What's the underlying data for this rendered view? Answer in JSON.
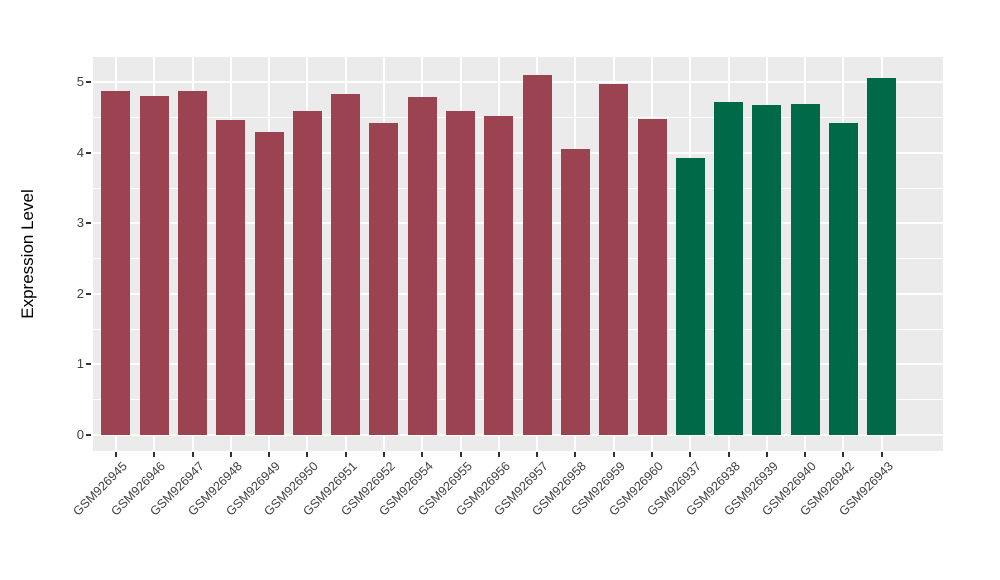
{
  "colors": {
    "maroon_bar": "#9b4350",
    "green_bar": "#006948",
    "panel_background": "#ebebeb",
    "grid": "#ffffff",
    "axis_text": "#404040",
    "axis_title": "#000000",
    "figure_background": "#ffffff"
  },
  "chart_data": {
    "type": "bar",
    "title": "",
    "xlabel": "",
    "ylabel": "Expression Level",
    "ylim": [
      -0.23,
      5.36
    ],
    "yticks": [
      0,
      1,
      2,
      3,
      4,
      5
    ],
    "ytick_labels": [
      "0",
      "1",
      "2",
      "3",
      "4",
      "5"
    ],
    "grid": "on",
    "legend": "none",
    "x_tick_rotation": 45,
    "categories": [
      "GSM926945",
      "GSM926946",
      "GSM926947",
      "GSM926948",
      "GSM926949",
      "GSM926950",
      "GSM926951",
      "GSM926952",
      "GSM926954",
      "GSM926955",
      "GSM926956",
      "GSM926957",
      "GSM926958",
      "GSM926959",
      "GSM926960",
      "GSM926937",
      "GSM926938",
      "GSM926939",
      "GSM926940",
      "GSM926942",
      "GSM926943"
    ],
    "values": [
      4.88,
      4.81,
      4.88,
      4.47,
      4.3,
      4.59,
      4.84,
      4.42,
      4.79,
      4.59,
      4.53,
      5.11,
      4.06,
      4.97,
      4.48,
      3.92,
      4.72,
      4.68,
      4.7,
      4.43,
      5.06
    ],
    "bar_colors": [
      "#9b4350",
      "#9b4350",
      "#9b4350",
      "#9b4350",
      "#9b4350",
      "#9b4350",
      "#9b4350",
      "#9b4350",
      "#9b4350",
      "#9b4350",
      "#9b4350",
      "#9b4350",
      "#9b4350",
      "#9b4350",
      "#9b4350",
      "#006948",
      "#006948",
      "#006948",
      "#006948",
      "#006948",
      "#006948"
    ]
  }
}
